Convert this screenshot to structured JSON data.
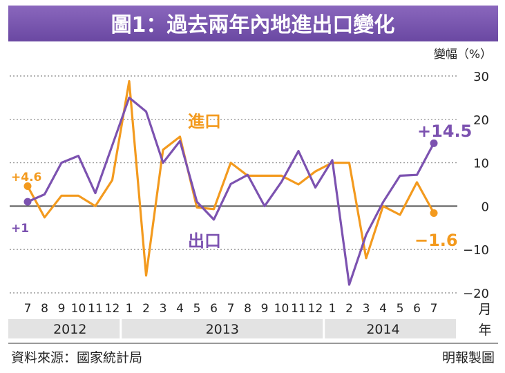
{
  "chart_data": {
    "type": "line",
    "title": "圖1：過去兩年內地進出口變化",
    "ylabel": "變幅（%）",
    "xlabel": "月 年",
    "x_unit_month": "月",
    "x_unit_year": "年",
    "ylim": [
      -20,
      30
    ],
    "yticks": [
      "30",
      "20",
      "10",
      "0",
      "−10",
      "−20"
    ],
    "ytick_values": [
      30,
      20,
      10,
      0,
      -10,
      -20
    ],
    "grid": true,
    "categories": [
      "7",
      "8",
      "9",
      "10",
      "11",
      "12",
      "1",
      "2",
      "3",
      "4",
      "5",
      "6",
      "7",
      "8",
      "9",
      "10",
      "11",
      "12",
      "1",
      "2",
      "3",
      "4",
      "5",
      "6",
      "7"
    ],
    "years": [
      {
        "label": "2012",
        "start": 0,
        "end": 5
      },
      {
        "label": "2013",
        "start": 6,
        "end": 17
      },
      {
        "label": "2014",
        "start": 18,
        "end": 24
      }
    ],
    "series": [
      {
        "name": "進口",
        "color": "#f39a1e",
        "values": [
          4.6,
          -2.6,
          2.4,
          2.4,
          0.0,
          6.0,
          28.8,
          -16.0,
          13.0,
          16.0,
          -0.3,
          -0.7,
          10.0,
          7.0,
          7.0,
          7.0,
          5.0,
          8.0,
          10.0,
          10.0,
          -12.0,
          0.0,
          -2.0,
          5.5,
          -1.6
        ]
      },
      {
        "name": "出口",
        "color": "#7c52b0",
        "values": [
          1.0,
          2.7,
          10.0,
          11.6,
          3.0,
          14.0,
          25.0,
          21.8,
          10.0,
          15.0,
          1.0,
          -3.1,
          5.1,
          7.2,
          0.0,
          5.6,
          12.7,
          4.3,
          10.6,
          -18.1,
          -6.6,
          0.9,
          7.0,
          7.2,
          14.5
        ]
      }
    ],
    "annotations": [
      {
        "text": "+4.6",
        "series": 0
      },
      {
        "text": "+1",
        "series": 1
      },
      {
        "text": "+14.5",
        "series": 1
      },
      {
        "text": "−1.6",
        "series": 0
      }
    ],
    "source": "資料來源：國家統計局",
    "credit": "明報製圖"
  }
}
